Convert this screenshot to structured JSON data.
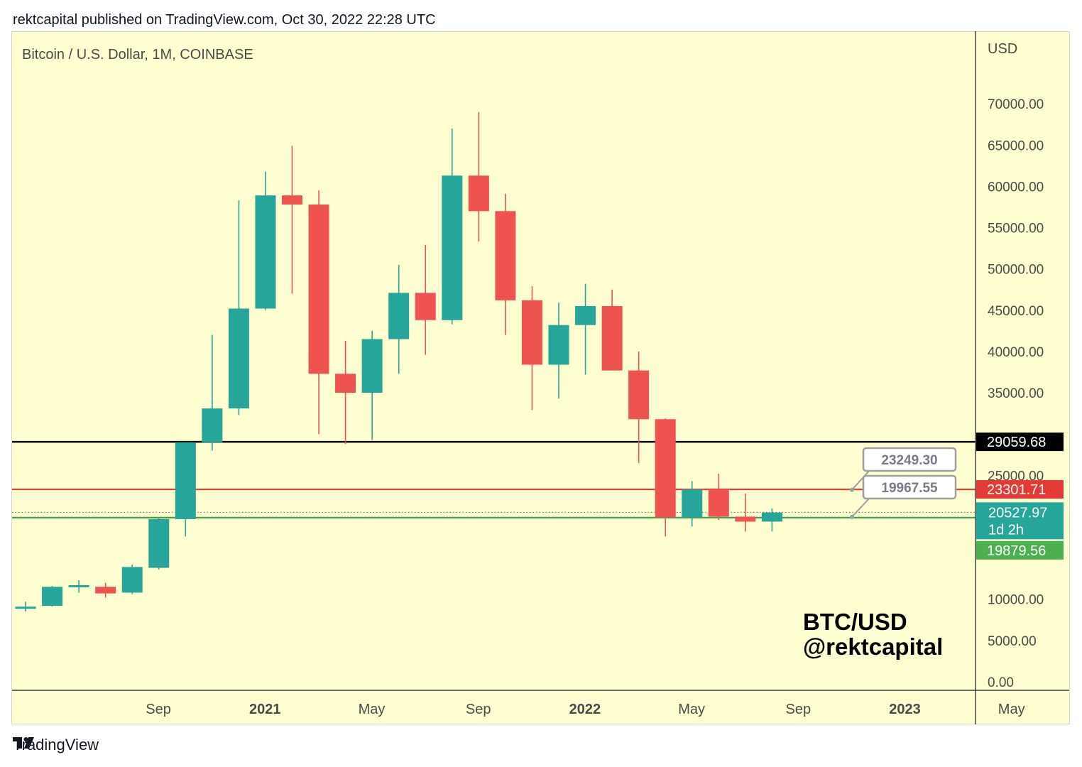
{
  "header": {
    "publisher_line": "rektcapital published on TradingView.com, Oct 30, 2022 22:28 UTC"
  },
  "footer": {
    "brand": "TradingView"
  },
  "colors": {
    "background": "#ffffd2",
    "bull": "#26a69a",
    "bear": "#ef5350",
    "support_black": "#000000",
    "resistance_red": "#e53935",
    "support_green": "#43a047",
    "current_price": "#26a69a"
  },
  "chart_data": {
    "type": "candlestick",
    "title": "Bitcoin / U.S. Dollar, 1M, COINBASE",
    "currency_label": "USD",
    "watermark": [
      "BTC/USD",
      "@rektcapital"
    ],
    "ylim": [
      0,
      75000
    ],
    "yticks": [
      "0.00",
      "5000.00",
      "10000.00",
      "25000.00",
      "35000.00",
      "40000.00",
      "45000.00",
      "50000.00",
      "55000.00",
      "60000.00",
      "65000.00",
      "70000.00"
    ],
    "xticks": [
      {
        "label": "Sep",
        "bold": false,
        "index": 2
      },
      {
        "label": "2021",
        "bold": true,
        "index": 6
      },
      {
        "label": "May",
        "bold": false,
        "index": 10
      },
      {
        "label": "Sep",
        "bold": false,
        "index": 14
      },
      {
        "label": "2022",
        "bold": true,
        "index": 18
      },
      {
        "label": "May",
        "bold": false,
        "index": 22
      },
      {
        "label": "Sep",
        "bold": false,
        "index": 26
      },
      {
        "label": "2023",
        "bold": true,
        "index": 30
      },
      {
        "label": "May",
        "bold": false,
        "index": 34
      }
    ],
    "candles": [
      {
        "month": "2020-07",
        "open": 9100,
        "high": 9700,
        "low": 8500,
        "close": 9100
      },
      {
        "month": "2020-08",
        "open": 9200,
        "high": 11600,
        "low": 9100,
        "close": 11500
      },
      {
        "month": "2020-09",
        "open": 11500,
        "high": 12300,
        "low": 10800,
        "close": 11700
      },
      {
        "month": "2020-10",
        "open": 11500,
        "high": 12000,
        "low": 10200,
        "close": 10700
      },
      {
        "month": "2020-11",
        "open": 10800,
        "high": 14200,
        "low": 10600,
        "close": 13900
      },
      {
        "month": "2020-12",
        "open": 13800,
        "high": 19800,
        "low": 13600,
        "close": 19700
      },
      {
        "month": "2020-12b",
        "open": 19700,
        "high": 29000,
        "low": 17600,
        "close": 29000
      },
      {
        "month": "2021-01",
        "open": 29000,
        "high": 42000,
        "low": 28000,
        "close": 33100
      },
      {
        "month": "2021-02",
        "open": 33100,
        "high": 58300,
        "low": 32300,
        "close": 45200
      },
      {
        "month": "2021-03",
        "open": 45200,
        "high": 61800,
        "low": 45000,
        "close": 58900
      },
      {
        "month": "2021-04",
        "open": 58900,
        "high": 64900,
        "low": 47000,
        "close": 57800
      },
      {
        "month": "2021-05",
        "open": 57800,
        "high": 59500,
        "low": 30000,
        "close": 37300
      },
      {
        "month": "2021-06",
        "open": 37300,
        "high": 41300,
        "low": 28800,
        "close": 35000
      },
      {
        "month": "2021-07",
        "open": 35000,
        "high": 42500,
        "low": 29300,
        "close": 41500
      },
      {
        "month": "2021-08",
        "open": 41500,
        "high": 50500,
        "low": 37300,
        "close": 47100
      },
      {
        "month": "2021-09",
        "open": 47100,
        "high": 52900,
        "low": 39600,
        "close": 43800
      },
      {
        "month": "2021-10",
        "open": 43800,
        "high": 67000,
        "low": 43300,
        "close": 61300
      },
      {
        "month": "2021-11",
        "open": 61300,
        "high": 69000,
        "low": 53300,
        "close": 57000
      },
      {
        "month": "2021-12",
        "open": 57000,
        "high": 59100,
        "low": 42000,
        "close": 46200
      },
      {
        "month": "2022-01",
        "open": 46200,
        "high": 47900,
        "low": 32900,
        "close": 38400
      },
      {
        "month": "2022-02",
        "open": 38400,
        "high": 45900,
        "low": 34300,
        "close": 43200
      },
      {
        "month": "2022-03",
        "open": 43200,
        "high": 48200,
        "low": 37200,
        "close": 45500
      },
      {
        "month": "2022-04",
        "open": 45500,
        "high": 47500,
        "low": 37700,
        "close": 37700
      },
      {
        "month": "2022-05",
        "open": 37700,
        "high": 40000,
        "low": 26500,
        "close": 31800
      },
      {
        "month": "2022-06",
        "open": 31800,
        "high": 31900,
        "low": 17600,
        "close": 19900
      },
      {
        "month": "2022-07",
        "open": 19900,
        "high": 24300,
        "low": 18800,
        "close": 23300
      },
      {
        "month": "2022-08",
        "open": 23300,
        "high": 25200,
        "low": 19600,
        "close": 20000
      },
      {
        "month": "2022-09",
        "open": 20000,
        "high": 22800,
        "low": 18200,
        "close": 19400
      },
      {
        "month": "2022-10",
        "open": 19400,
        "high": 21000,
        "low": 18200,
        "close": 20500
      }
    ],
    "horizontal_lines": [
      {
        "price": 29059.68,
        "label": "29059.68",
        "color": "#000000"
      },
      {
        "price": 23301.71,
        "label": "23301.71",
        "color": "#e53935"
      },
      {
        "price": 19879.56,
        "label": "19879.56",
        "color": "#43a047"
      }
    ],
    "current_price": {
      "value": 20527.97,
      "label": "20527.97",
      "countdown": "1d 2h"
    },
    "callouts": [
      {
        "label": "23249.30",
        "anchor_price": 23249.3
      },
      {
        "label": "19967.55",
        "anchor_price": 19967.55
      }
    ]
  }
}
